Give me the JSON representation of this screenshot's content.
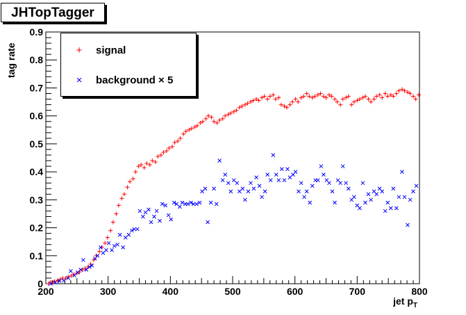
{
  "chart_data": {
    "type": "scatter",
    "title": "JHTopTagger",
    "xlabel": "jet p",
    "xlabel_sub": "T",
    "ylabel": "tag rate",
    "xlim": [
      200,
      800
    ],
    "ylim": [
      0,
      0.9
    ],
    "xticks": [
      "200",
      "300",
      "400",
      "500",
      "600",
      "700",
      "800"
    ],
    "yticks": [
      "0",
      "0.1",
      "0.2",
      "0.3",
      "0.4",
      "0.5",
      "0.6",
      "0.7",
      "0.8",
      "0.9"
    ],
    "legend_position": "top-left",
    "series": [
      {
        "name": "signal",
        "marker": "+",
        "marker_glyph": "+",
        "color": "#ff0000",
        "points": [
          [
            204,
            0.0
          ],
          [
            207,
            0.005
          ],
          [
            211,
            0.005
          ],
          [
            214,
            0.008
          ],
          [
            219,
            0.012
          ],
          [
            223,
            0.015
          ],
          [
            227,
            0.02
          ],
          [
            232,
            0.02
          ],
          [
            236,
            0.025
          ],
          [
            241,
            0.028
          ],
          [
            245,
            0.033
          ],
          [
            250,
            0.038
          ],
          [
            254,
            0.042
          ],
          [
            259,
            0.05
          ],
          [
            263,
            0.055
          ],
          [
            268,
            0.06
          ],
          [
            272,
            0.07
          ],
          [
            277,
            0.085
          ],
          [
            281,
            0.1
          ],
          [
            286,
            0.115
          ],
          [
            290,
            0.13
          ],
          [
            295,
            0.145
          ],
          [
            299,
            0.165
          ],
          [
            304,
            0.19
          ],
          [
            308,
            0.22
          ],
          [
            313,
            0.25
          ],
          [
            317,
            0.28
          ],
          [
            322,
            0.305
          ],
          [
            326,
            0.32
          ],
          [
            331,
            0.345
          ],
          [
            335,
            0.365
          ],
          [
            340,
            0.375
          ],
          [
            344,
            0.4
          ],
          [
            349,
            0.42
          ],
          [
            353,
            0.425
          ],
          [
            358,
            0.415
          ],
          [
            362,
            0.43
          ],
          [
            367,
            0.425
          ],
          [
            371,
            0.44
          ],
          [
            376,
            0.435
          ],
          [
            380,
            0.455
          ],
          [
            385,
            0.46
          ],
          [
            389,
            0.47
          ],
          [
            394,
            0.475
          ],
          [
            398,
            0.485
          ],
          [
            403,
            0.49
          ],
          [
            407,
            0.505
          ],
          [
            412,
            0.51
          ],
          [
            416,
            0.52
          ],
          [
            421,
            0.535
          ],
          [
            425,
            0.545
          ],
          [
            430,
            0.55
          ],
          [
            434,
            0.555
          ],
          [
            439,
            0.56
          ],
          [
            443,
            0.565
          ],
          [
            448,
            0.575
          ],
          [
            452,
            0.58
          ],
          [
            457,
            0.59
          ],
          [
            461,
            0.6
          ],
          [
            466,
            0.595
          ],
          [
            470,
            0.58
          ],
          [
            475,
            0.575
          ],
          [
            479,
            0.585
          ],
          [
            484,
            0.59
          ],
          [
            488,
            0.6
          ],
          [
            493,
            0.605
          ],
          [
            497,
            0.61
          ],
          [
            502,
            0.615
          ],
          [
            506,
            0.62
          ],
          [
            511,
            0.63
          ],
          [
            515,
            0.635
          ],
          [
            520,
            0.64
          ],
          [
            524,
            0.645
          ],
          [
            529,
            0.65
          ],
          [
            533,
            0.655
          ],
          [
            538,
            0.66
          ],
          [
            542,
            0.655
          ],
          [
            547,
            0.665
          ],
          [
            551,
            0.67
          ],
          [
            556,
            0.66
          ],
          [
            560,
            0.67
          ],
          [
            565,
            0.675
          ],
          [
            569,
            0.66
          ],
          [
            574,
            0.665
          ],
          [
            578,
            0.64
          ],
          [
            583,
            0.635
          ],
          [
            587,
            0.63
          ],
          [
            592,
            0.64
          ],
          [
            596,
            0.65
          ],
          [
            601,
            0.66
          ],
          [
            605,
            0.65
          ],
          [
            610,
            0.665
          ],
          [
            614,
            0.67
          ],
          [
            619,
            0.68
          ],
          [
            623,
            0.67
          ],
          [
            628,
            0.665
          ],
          [
            632,
            0.67
          ],
          [
            637,
            0.675
          ],
          [
            641,
            0.68
          ],
          [
            646,
            0.67
          ],
          [
            650,
            0.665
          ],
          [
            655,
            0.675
          ],
          [
            659,
            0.67
          ],
          [
            664,
            0.66
          ],
          [
            668,
            0.65
          ],
          [
            673,
            0.64
          ],
          [
            677,
            0.66
          ],
          [
            682,
            0.665
          ],
          [
            686,
            0.67
          ],
          [
            691,
            0.64
          ],
          [
            695,
            0.65
          ],
          [
            700,
            0.655
          ],
          [
            704,
            0.66
          ],
          [
            709,
            0.665
          ],
          [
            713,
            0.67
          ],
          [
            718,
            0.66
          ],
          [
            722,
            0.65
          ],
          [
            727,
            0.66
          ],
          [
            731,
            0.67
          ],
          [
            736,
            0.675
          ],
          [
            740,
            0.665
          ],
          [
            745,
            0.68
          ],
          [
            749,
            0.67
          ],
          [
            754,
            0.675
          ],
          [
            758,
            0.67
          ],
          [
            763,
            0.68
          ],
          [
            767,
            0.69
          ],
          [
            772,
            0.695
          ],
          [
            776,
            0.69
          ],
          [
            781,
            0.685
          ],
          [
            785,
            0.68
          ],
          [
            790,
            0.67
          ],
          [
            794,
            0.66
          ],
          [
            799,
            0.675
          ]
        ]
      },
      {
        "name": "background",
        "legend_suffix": "× 5",
        "marker": "x",
        "marker_glyph": "×",
        "color": "#0000ff",
        "points": [
          [
            208,
            0.0
          ],
          [
            215,
            0.005
          ],
          [
            222,
            0.01
          ],
          [
            229,
            0.012
          ],
          [
            236,
            0.02
          ],
          [
            240,
            0.045
          ],
          [
            246,
            0.03
          ],
          [
            251,
            0.04
          ],
          [
            256,
            0.05
          ],
          [
            260,
            0.085
          ],
          [
            265,
            0.05
          ],
          [
            270,
            0.06
          ],
          [
            274,
            0.065
          ],
          [
            279,
            0.09
          ],
          [
            283,
            0.1
          ],
          [
            288,
            0.13
          ],
          [
            292,
            0.11
          ],
          [
            297,
            0.12
          ],
          [
            301,
            0.145
          ],
          [
            306,
            0.12
          ],
          [
            310,
            0.135
          ],
          [
            315,
            0.14
          ],
          [
            319,
            0.175
          ],
          [
            324,
            0.13
          ],
          [
            328,
            0.165
          ],
          [
            333,
            0.175
          ],
          [
            338,
            0.19
          ],
          [
            342,
            0.195
          ],
          [
            347,
            0.195
          ],
          [
            351,
            0.26
          ],
          [
            356,
            0.24
          ],
          [
            360,
            0.255
          ],
          [
            365,
            0.265
          ],
          [
            369,
            0.22
          ],
          [
            374,
            0.24
          ],
          [
            378,
            0.26
          ],
          [
            383,
            0.225
          ],
          [
            387,
            0.285
          ],
          [
            392,
            0.28
          ],
          [
            397,
            0.245
          ],
          [
            401,
            0.23
          ],
          [
            406,
            0.29
          ],
          [
            410,
            0.285
          ],
          [
            415,
            0.275
          ],
          [
            419,
            0.29
          ],
          [
            424,
            0.285
          ],
          [
            428,
            0.285
          ],
          [
            433,
            0.29
          ],
          [
            437,
            0.285
          ],
          [
            442,
            0.285
          ],
          [
            447,
            0.29
          ],
          [
            451,
            0.33
          ],
          [
            456,
            0.34
          ],
          [
            460,
            0.22
          ],
          [
            465,
            0.29
          ],
          [
            470,
            0.34
          ],
          [
            474,
            0.285
          ],
          [
            479,
            0.44
          ],
          [
            484,
            0.37
          ],
          [
            488,
            0.39
          ],
          [
            493,
            0.36
          ],
          [
            497,
            0.33
          ],
          [
            502,
            0.37
          ],
          [
            507,
            0.36
          ],
          [
            511,
            0.33
          ],
          [
            516,
            0.34
          ],
          [
            520,
            0.3
          ],
          [
            525,
            0.33
          ],
          [
            529,
            0.36
          ],
          [
            534,
            0.34
          ],
          [
            538,
            0.38
          ],
          [
            543,
            0.35
          ],
          [
            547,
            0.31
          ],
          [
            552,
            0.33
          ],
          [
            556,
            0.39
          ],
          [
            561,
            0.37
          ],
          [
            565,
            0.46
          ],
          [
            570,
            0.39
          ],
          [
            574,
            0.37
          ],
          [
            579,
            0.41
          ],
          [
            583,
            0.37
          ],
          [
            588,
            0.41
          ],
          [
            592,
            0.38
          ],
          [
            597,
            0.39
          ],
          [
            601,
            0.4
          ],
          [
            606,
            0.33
          ],
          [
            610,
            0.36
          ],
          [
            615,
            0.31
          ],
          [
            619,
            0.33
          ],
          [
            624,
            0.29
          ],
          [
            628,
            0.35
          ],
          [
            633,
            0.37
          ],
          [
            637,
            0.37
          ],
          [
            642,
            0.42
          ],
          [
            646,
            0.39
          ],
          [
            651,
            0.37
          ],
          [
            655,
            0.36
          ],
          [
            660,
            0.33
          ],
          [
            664,
            0.29
          ],
          [
            669,
            0.37
          ],
          [
            673,
            0.36
          ],
          [
            677,
            0.42
          ],
          [
            682,
            0.36
          ],
          [
            686,
            0.34
          ],
          [
            691,
            0.3
          ],
          [
            695,
            0.31
          ],
          [
            700,
            0.28
          ],
          [
            704,
            0.27
          ],
          [
            709,
            0.36
          ],
          [
            713,
            0.29
          ],
          [
            718,
            0.32
          ],
          [
            722,
            0.3
          ],
          [
            727,
            0.33
          ],
          [
            731,
            0.32
          ],
          [
            736,
            0.34
          ],
          [
            740,
            0.33
          ],
          [
            745,
            0.26
          ],
          [
            749,
            0.29
          ],
          [
            754,
            0.27
          ],
          [
            758,
            0.34
          ],
          [
            763,
            0.27
          ],
          [
            767,
            0.31
          ],
          [
            772,
            0.4
          ],
          [
            776,
            0.31
          ],
          [
            781,
            0.21
          ],
          [
            785,
            0.3
          ],
          [
            790,
            0.33
          ],
          [
            795,
            0.35
          ]
        ]
      }
    ]
  }
}
